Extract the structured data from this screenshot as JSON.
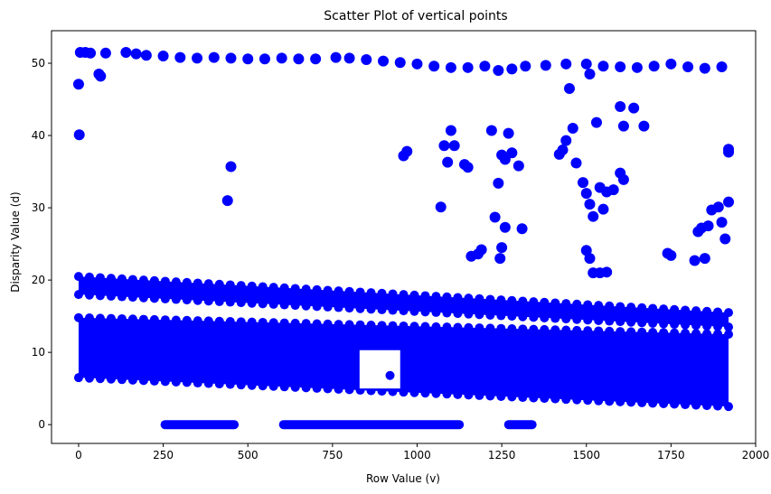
{
  "chart_data": {
    "type": "scatter",
    "title": "Scatter Plot of vertical points",
    "xlabel": "Row Value (v)",
    "ylabel": "Disparity Value (d)",
    "xlim": [
      -80,
      2000
    ],
    "ylim": [
      -2.6,
      54.5
    ],
    "xticks": [
      0,
      250,
      500,
      750,
      1000,
      1250,
      1500,
      1750,
      2000
    ],
    "yticks": [
      0,
      10,
      20,
      30,
      40,
      50
    ],
    "grid": false,
    "marker_color": "#0000ff",
    "series": [
      {
        "points": [
          [
            0,
            47.1
          ],
          [
            2,
            40.1
          ],
          [
            5,
            51.5
          ],
          [
            20,
            51.5
          ],
          [
            35,
            51.4
          ],
          [
            60,
            48.5
          ],
          [
            65,
            48.2
          ],
          [
            80,
            51.4
          ],
          [
            140,
            51.5
          ],
          [
            170,
            51.3
          ],
          [
            200,
            51.1
          ],
          [
            250,
            51.0
          ],
          [
            300,
            50.8
          ],
          [
            350,
            50.7
          ],
          [
            400,
            50.8
          ],
          [
            450,
            50.7
          ],
          [
            500,
            50.6
          ],
          [
            550,
            50.6
          ],
          [
            600,
            50.7
          ],
          [
            650,
            50.6
          ],
          [
            700,
            50.6
          ],
          [
            760,
            50.8
          ],
          [
            800,
            50.7
          ],
          [
            850,
            50.5
          ],
          [
            900,
            50.3
          ],
          [
            950,
            50.1
          ],
          [
            1000,
            49.9
          ],
          [
            1050,
            49.6
          ],
          [
            1100,
            49.4
          ],
          [
            1150,
            49.4
          ],
          [
            1200,
            49.6
          ],
          [
            1240,
            49.0
          ],
          [
            1280,
            49.2
          ],
          [
            1320,
            49.6
          ],
          [
            1380,
            49.7
          ],
          [
            1440,
            49.9
          ],
          [
            1500,
            49.9
          ],
          [
            1550,
            49.6
          ],
          [
            1600,
            49.5
          ],
          [
            1650,
            49.4
          ],
          [
            1700,
            49.6
          ],
          [
            1750,
            49.9
          ],
          [
            1800,
            49.5
          ],
          [
            1850,
            49.3
          ],
          [
            1900,
            49.5
          ],
          [
            1510,
            48.5
          ],
          [
            440,
            31.0
          ],
          [
            450,
            35.7
          ],
          [
            1070,
            30.1
          ],
          [
            1080,
            38.6
          ],
          [
            1100,
            40.7
          ],
          [
            1090,
            36.3
          ],
          [
            1110,
            38.6
          ],
          [
            1140,
            36.0
          ],
          [
            1150,
            35.6
          ],
          [
            1160,
            23.3
          ],
          [
            1180,
            23.6
          ],
          [
            1190,
            24.2
          ],
          [
            1220,
            40.7
          ],
          [
            1230,
            28.7
          ],
          [
            1240,
            33.4
          ],
          [
            1250,
            37.3
          ],
          [
            1260,
            36.7
          ],
          [
            1270,
            40.3
          ],
          [
            1280,
            37.6
          ],
          [
            1300,
            35.8
          ],
          [
            1310,
            27.1
          ],
          [
            1250,
            24.5
          ],
          [
            1245,
            23.0
          ],
          [
            1260,
            27.3
          ],
          [
            960,
            37.2
          ],
          [
            970,
            37.8
          ],
          [
            1420,
            37.4
          ],
          [
            1430,
            38.0
          ],
          [
            1440,
            39.3
          ],
          [
            1450,
            46.5
          ],
          [
            1460,
            41.0
          ],
          [
            1470,
            36.2
          ],
          [
            1490,
            33.5
          ],
          [
            1500,
            32.0
          ],
          [
            1510,
            30.5
          ],
          [
            1520,
            28.8
          ],
          [
            1530,
            41.8
          ],
          [
            1540,
            32.8
          ],
          [
            1550,
            29.8
          ],
          [
            1560,
            32.2
          ],
          [
            1500,
            24.1
          ],
          [
            1510,
            23.0
          ],
          [
            1520,
            21.0
          ],
          [
            1540,
            21.0
          ],
          [
            1560,
            21.1
          ],
          [
            1600,
            44.0
          ],
          [
            1640,
            43.8
          ],
          [
            1610,
            41.3
          ],
          [
            1670,
            41.3
          ],
          [
            1600,
            34.8
          ],
          [
            1610,
            33.9
          ],
          [
            1580,
            32.5
          ],
          [
            1740,
            23.7
          ],
          [
            1750,
            23.4
          ],
          [
            1820,
            22.7
          ],
          [
            1850,
            23.0
          ],
          [
            1840,
            27.2
          ],
          [
            1860,
            27.5
          ],
          [
            1870,
            29.7
          ],
          [
            1890,
            30.1
          ],
          [
            1900,
            28.0
          ],
          [
            1910,
            25.7
          ],
          [
            1920,
            30.8
          ],
          [
            1920,
            38.1
          ],
          [
            1920,
            37.7
          ],
          [
            1830,
            26.7
          ]
        ],
        "bands": [
          {
            "x": [
              0,
              1920
            ],
            "y_start": [
              20.5,
              15.5
            ],
            "y_end": [
              18.0,
              13.5
            ],
            "note": "upper road band"
          },
          {
            "x": [
              0,
              1920
            ],
            "y_start": [
              14.8,
              12.5
            ],
            "y_end": [
              6.5,
              2.5
            ],
            "note": "dense lower band"
          }
        ],
        "zero_runs": [
          [
            250,
            465
          ],
          [
            600,
            1130
          ],
          [
            1265,
            1345
          ]
        ]
      }
    ]
  }
}
